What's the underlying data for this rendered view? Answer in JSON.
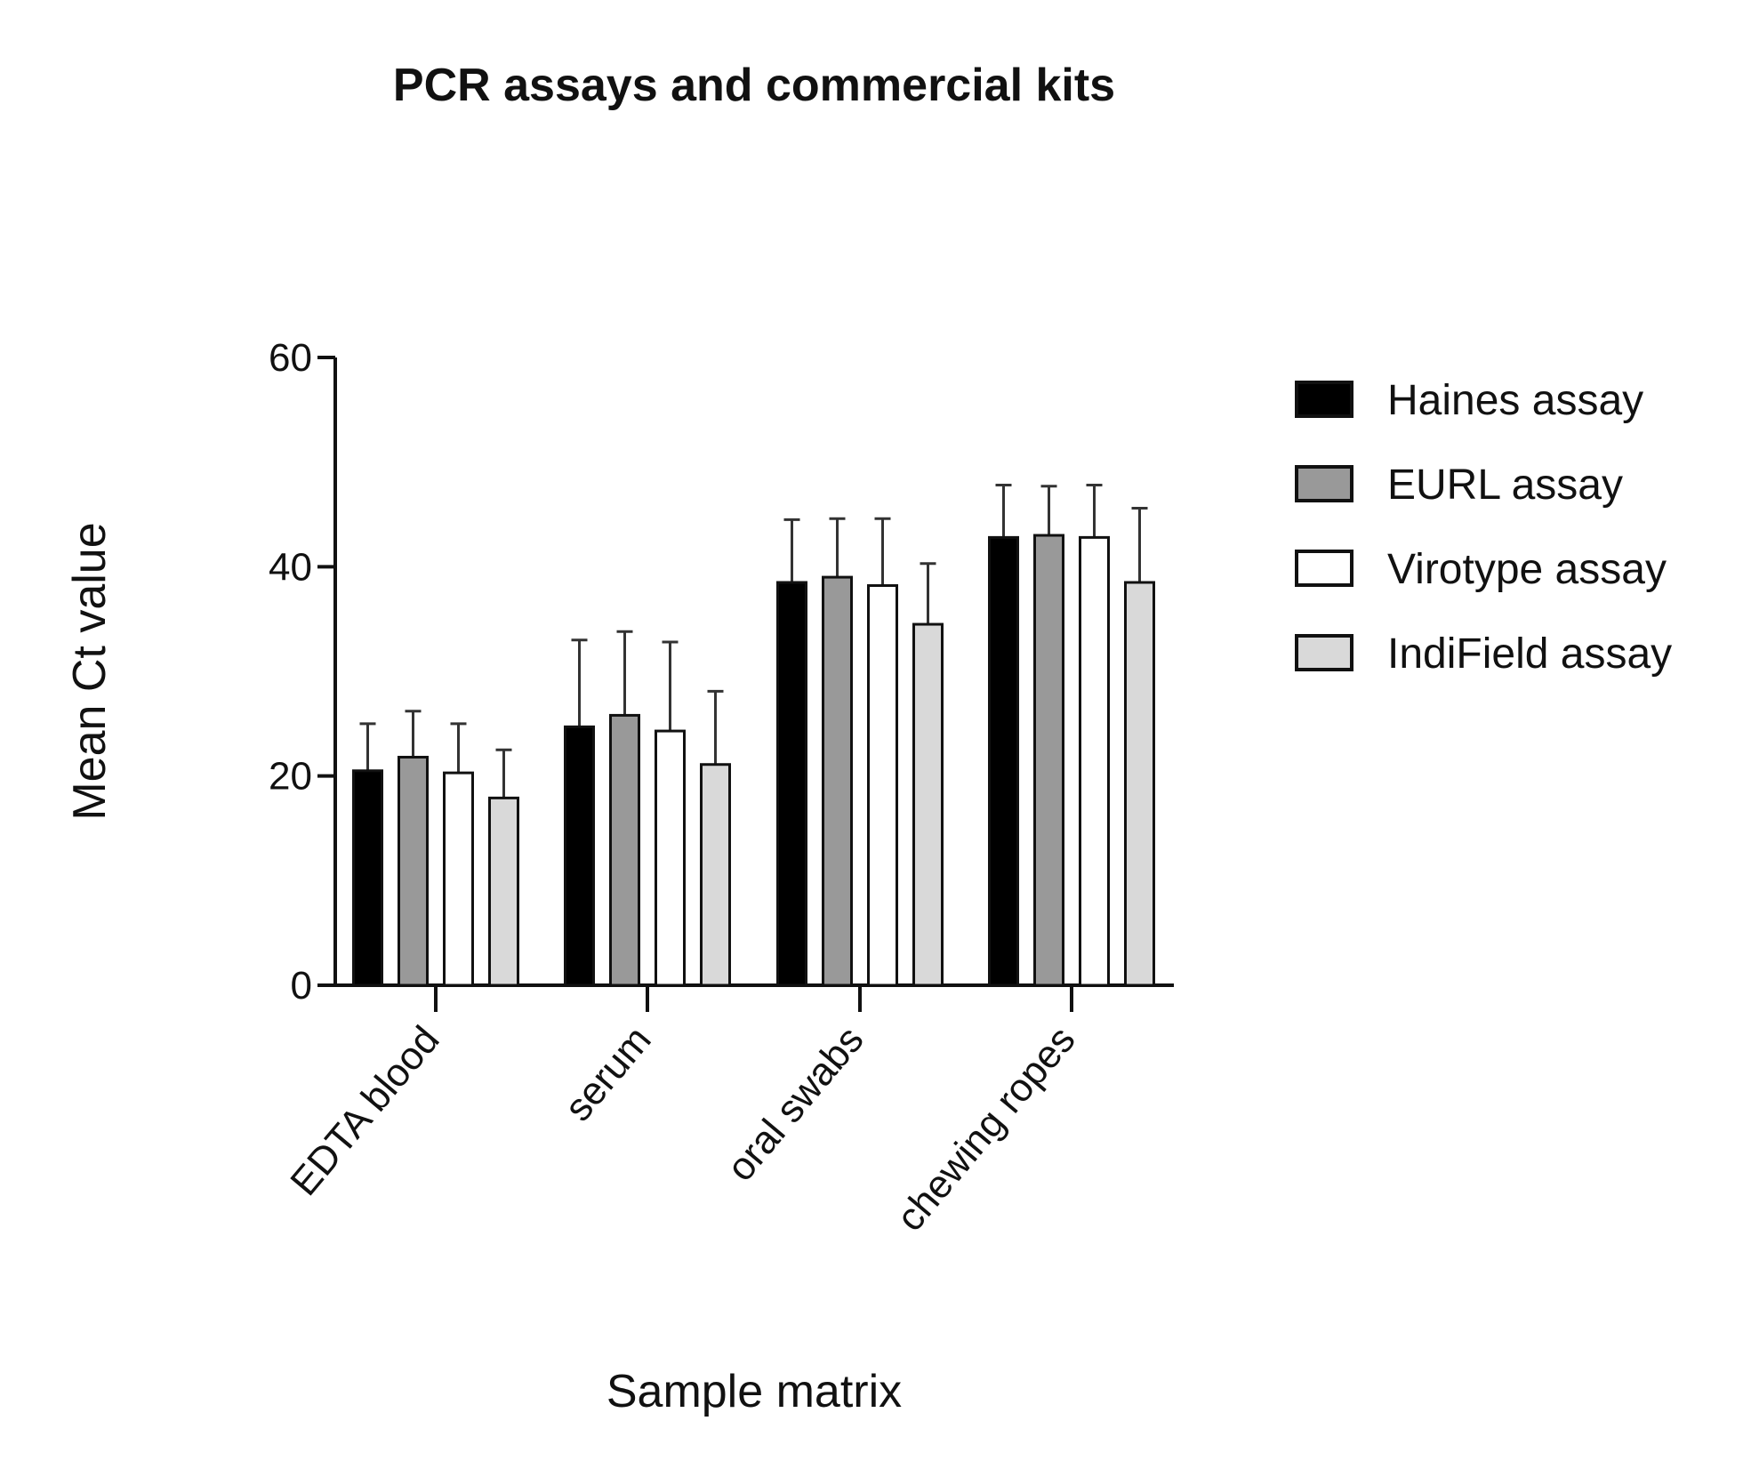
{
  "chart_data": {
    "type": "bar",
    "title": "PCR assays and commercial kits",
    "xlabel": "Sample matrix",
    "ylabel": "Mean Ct value",
    "ylim": [
      0,
      60
    ],
    "yticks": [
      0,
      20,
      40,
      60
    ],
    "categories": [
      "EDTA blood",
      "serum",
      "oral swabs",
      "chewing ropes"
    ],
    "series": [
      {
        "name": "Haines assay",
        "color": "#000000",
        "values": [
          20.5,
          24.7,
          38.5,
          42.8
        ],
        "errors": [
          4.5,
          8.3,
          6.0,
          5.0
        ]
      },
      {
        "name": "EURL assay",
        "color": "#999999",
        "values": [
          21.8,
          25.8,
          39.0,
          43.0
        ],
        "errors": [
          4.4,
          8.0,
          5.6,
          4.7
        ]
      },
      {
        "name": "Virotype assay",
        "color": "#ffffff",
        "values": [
          20.3,
          24.3,
          38.2,
          42.8
        ],
        "errors": [
          4.7,
          8.5,
          6.4,
          5.0
        ]
      },
      {
        "name": "IndiField assay",
        "color": "#d9d9d9",
        "values": [
          17.9,
          21.1,
          34.5,
          38.5
        ],
        "errors": [
          4.6,
          7.0,
          5.8,
          7.1
        ]
      }
    ],
    "legend_position": "right",
    "grid": false
  }
}
